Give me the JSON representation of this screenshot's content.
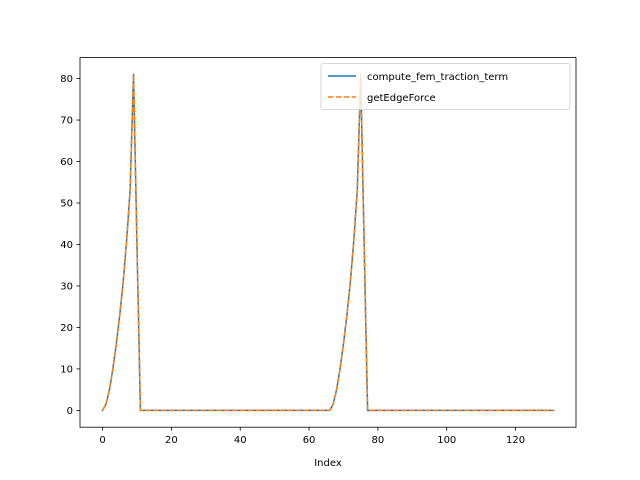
{
  "chart_data": {
    "type": "line",
    "title": "",
    "xlabel": "Index",
    "ylabel": "",
    "xlim": [
      -6.55,
      137.55
    ],
    "ylim": [
      -4.05,
      85.05
    ],
    "xticks": [
      0,
      20,
      40,
      60,
      80,
      100,
      120
    ],
    "yticks": [
      0,
      10,
      20,
      30,
      40,
      50,
      60,
      70,
      80
    ],
    "grid": false,
    "legend_position": "top-right",
    "series": [
      {
        "name": "compute_fem_traction_term",
        "color": "#1f77b4",
        "style": "solid",
        "x": [
          0,
          1,
          2,
          3,
          4,
          5,
          6,
          7,
          8,
          9,
          10,
          11,
          20,
          40,
          60,
          66,
          67,
          68,
          69,
          70,
          71,
          72,
          73,
          74,
          75,
          76,
          77,
          80,
          100,
          120,
          131
        ],
        "y": [
          0,
          1.5,
          5,
          10,
          16,
          23,
          31,
          41,
          53,
          81,
          40,
          0,
          0,
          0,
          0,
          0,
          1.5,
          5,
          10,
          16,
          23,
          31,
          41,
          53,
          81,
          40,
          0,
          0,
          0,
          0,
          0
        ]
      },
      {
        "name": "getEdgeForce",
        "color": "#ff7f0e",
        "style": "dashed",
        "x": [
          0,
          1,
          2,
          3,
          4,
          5,
          6,
          7,
          8,
          9,
          10,
          11,
          20,
          40,
          60,
          66,
          67,
          68,
          69,
          70,
          71,
          72,
          73,
          74,
          75,
          76,
          77,
          80,
          100,
          120,
          131
        ],
        "y": [
          0,
          1.5,
          5,
          10,
          16,
          23,
          31,
          41,
          53,
          81,
          40,
          0,
          0,
          0,
          0,
          0,
          1.5,
          5,
          10,
          16,
          23,
          31,
          41,
          53,
          81,
          40,
          0,
          0,
          0,
          0,
          0
        ]
      }
    ]
  }
}
